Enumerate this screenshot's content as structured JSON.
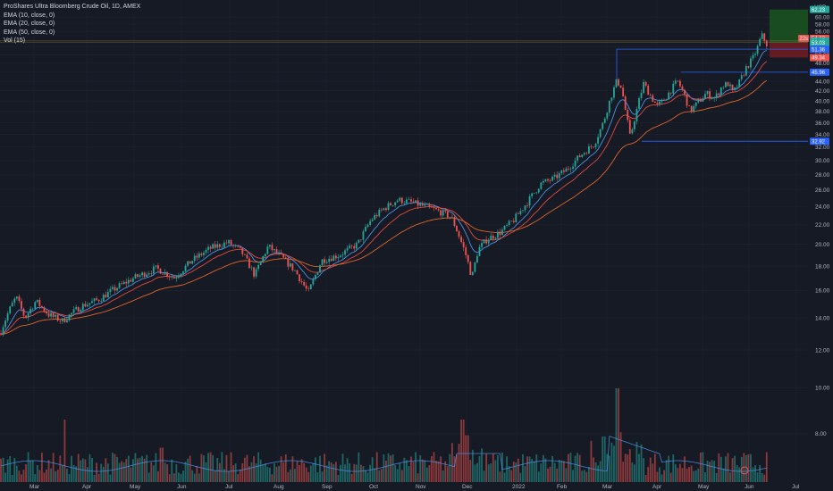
{
  "legend": {
    "title": "ProShares Ultra Bloomberg Crude Oil, 1D, AMEX",
    "ema10": "EMA (10, close, 0)",
    "ema20": "EMA (20, close, 0)",
    "ema50": "EMA (50, close, 0)",
    "vol": "Vol (15)"
  },
  "currency": "USD",
  "colors": {
    "up": "#26a69a",
    "down": "#ef5350",
    "ema10": "#4a90e2",
    "ema20": "#e04a3f",
    "ema50": "#e0642a",
    "level": "#2962ff",
    "target": "#1b5e20",
    "stop": "#7f1d22"
  },
  "chart_data": {
    "type": "candlestick",
    "x_ticks": [
      "Mar",
      "Apr",
      "May",
      "Jun",
      "Jul",
      "Aug",
      "Sep",
      "Oct",
      "Nov",
      "Dec",
      "2022",
      "Feb",
      "Mar",
      "Apr",
      "May",
      "Jun",
      "Jul"
    ],
    "y_ticks": [
      8.0,
      10.0,
      12.0,
      14.0,
      16.0,
      18.0,
      20.0,
      22.0,
      24.0,
      26.0,
      28.0,
      30.0,
      32.0,
      34.0,
      36.0,
      38.0,
      40.0,
      42.0,
      44.0,
      46.0,
      48.0,
      50.0,
      52.0,
      56.0,
      58.0,
      60.0
    ],
    "y_tick_labels": [
      "8.00",
      "10.00",
      "12.00",
      "14.00",
      "16.00",
      "18.00",
      "20.00",
      "22.00",
      "24.00",
      "26.00",
      "28.00",
      "30.00",
      "32.00",
      "34.00",
      "36.00",
      "38.00",
      "40.00",
      "42.00",
      "44.00",
      "46.00",
      "48.00",
      "50.00",
      "52.00",
      "56.00",
      "58.00",
      "60.00"
    ],
    "ylim": [
      6.5,
      63.5
    ],
    "price_path": [
      [
        0,
        13.0
      ],
      [
        10,
        14.5
      ],
      [
        18,
        15.5
      ],
      [
        28,
        14.0
      ],
      [
        40,
        15.2
      ],
      [
        55,
        14.2
      ],
      [
        70,
        13.8
      ],
      [
        90,
        14.8
      ],
      [
        110,
        15.3
      ],
      [
        130,
        16.2
      ],
      [
        150,
        17.0
      ],
      [
        175,
        17.8
      ],
      [
        195,
        17.0
      ],
      [
        215,
        18.5
      ],
      [
        235,
        19.6
      ],
      [
        255,
        20.2
      ],
      [
        270,
        19.3
      ],
      [
        285,
        17.2
      ],
      [
        300,
        19.8
      ],
      [
        315,
        18.8
      ],
      [
        330,
        17.6
      ],
      [
        345,
        15.8
      ],
      [
        360,
        18.5
      ],
      [
        380,
        19.0
      ],
      [
        400,
        20.0
      ],
      [
        415,
        22.5
      ],
      [
        430,
        23.8
      ],
      [
        445,
        24.8
      ],
      [
        460,
        24.5
      ],
      [
        475,
        24.0
      ],
      [
        490,
        23.5
      ],
      [
        505,
        22.8
      ],
      [
        515,
        20.5
      ],
      [
        522,
        18.8
      ],
      [
        528,
        17.0
      ],
      [
        535,
        19.5
      ],
      [
        545,
        20.5
      ],
      [
        560,
        21.2
      ],
      [
        575,
        22.5
      ],
      [
        590,
        24.5
      ],
      [
        605,
        26.8
      ],
      [
        620,
        27.5
      ],
      [
        635,
        28.8
      ],
      [
        650,
        30.8
      ],
      [
        665,
        32.5
      ],
      [
        675,
        36.0
      ],
      [
        683,
        40.5
      ],
      [
        690,
        44.0
      ],
      [
        695,
        43.0
      ],
      [
        700,
        38.0
      ],
      [
        705,
        33.5
      ],
      [
        712,
        38.0
      ],
      [
        720,
        43.5
      ],
      [
        728,
        41.0
      ],
      [
        735,
        39.0
      ],
      [
        742,
        40.0
      ],
      [
        750,
        42.0
      ],
      [
        758,
        44.0
      ],
      [
        765,
        41.5
      ],
      [
        772,
        38.0
      ],
      [
        780,
        39.5
      ],
      [
        790,
        41.5
      ],
      [
        800,
        40.5
      ],
      [
        808,
        43.0
      ],
      [
        815,
        43.5
      ],
      [
        820,
        41.5
      ],
      [
        828,
        44.0
      ],
      [
        835,
        47.0
      ],
      [
        842,
        49.0
      ],
      [
        848,
        52.0
      ],
      [
        852,
        55.0
      ],
      [
        856,
        53.5
      ],
      [
        860,
        51.5
      ]
    ],
    "volume_spikes": [
      [
        72,
        10.0
      ],
      [
        181,
        5.5
      ],
      [
        517,
        10.0
      ],
      [
        523,
        7.5
      ],
      [
        676,
        7.3
      ],
      [
        691,
        15.0
      ]
    ],
    "hlines": [
      {
        "x_from": 690,
        "value": 51.36,
        "label": "51.36"
      },
      {
        "x_from": 762,
        "value": 45.96,
        "label": "45.96"
      },
      {
        "x_from": 718,
        "value": 32.92,
        "label": "32.92"
      }
    ],
    "price_labels": [
      {
        "value": 62.23,
        "label": "62.23",
        "color": "#26a69a"
      },
      {
        "value": 54.12,
        "label": "54.12",
        "color": "#ef5350"
      },
      {
        "value": 53.45,
        "label": "53.45",
        "color": "#26a69a"
      },
      {
        "value": 53.03,
        "label": "53.03",
        "color": "#26a69a"
      },
      {
        "value": 49.34,
        "label": "49.34",
        "color": "#ef5350"
      }
    ],
    "position": {
      "entry": 53.03,
      "target": 62.23,
      "stop": 49.34
    },
    "flag_label": "22s"
  }
}
